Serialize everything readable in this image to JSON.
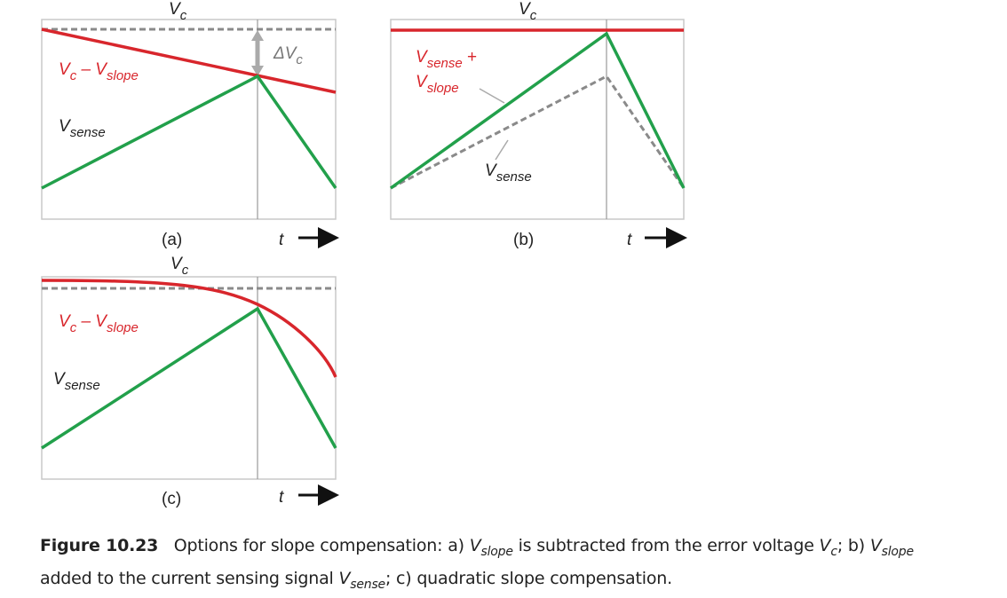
{
  "panels": [
    {
      "caption": "(a)",
      "vc": [
        "V",
        "c"
      ],
      "delta": [
        "ΔV",
        "c"
      ],
      "difference": [
        "V",
        "c",
        " – V",
        "slope"
      ],
      "sense": [
        "V",
        "sense"
      ],
      "time": "t"
    },
    {
      "caption": "(b)",
      "vc": [
        "V",
        "c"
      ],
      "sum": [
        "V",
        "sense",
        " +",
        "V",
        "slope"
      ],
      "sense": [
        "V",
        "sense"
      ],
      "time": "t"
    },
    {
      "caption": "(c)",
      "vc": [
        "V",
        "c"
      ],
      "difference": [
        "V",
        "c",
        " – V",
        "slope"
      ],
      "sense": [
        "V",
        "sense"
      ],
      "time": "t"
    }
  ],
  "figure_caption": {
    "number": "Figure 10.23",
    "parts": [
      "Options for slope compensation: a) ",
      "V",
      "slope",
      " is subtracted from the error voltage ",
      "V",
      "c",
      "; b) ",
      "V",
      "slope",
      "added to the current sensing signal ",
      "V",
      "sense",
      "; c) quadratic slope compensation."
    ]
  }
}
